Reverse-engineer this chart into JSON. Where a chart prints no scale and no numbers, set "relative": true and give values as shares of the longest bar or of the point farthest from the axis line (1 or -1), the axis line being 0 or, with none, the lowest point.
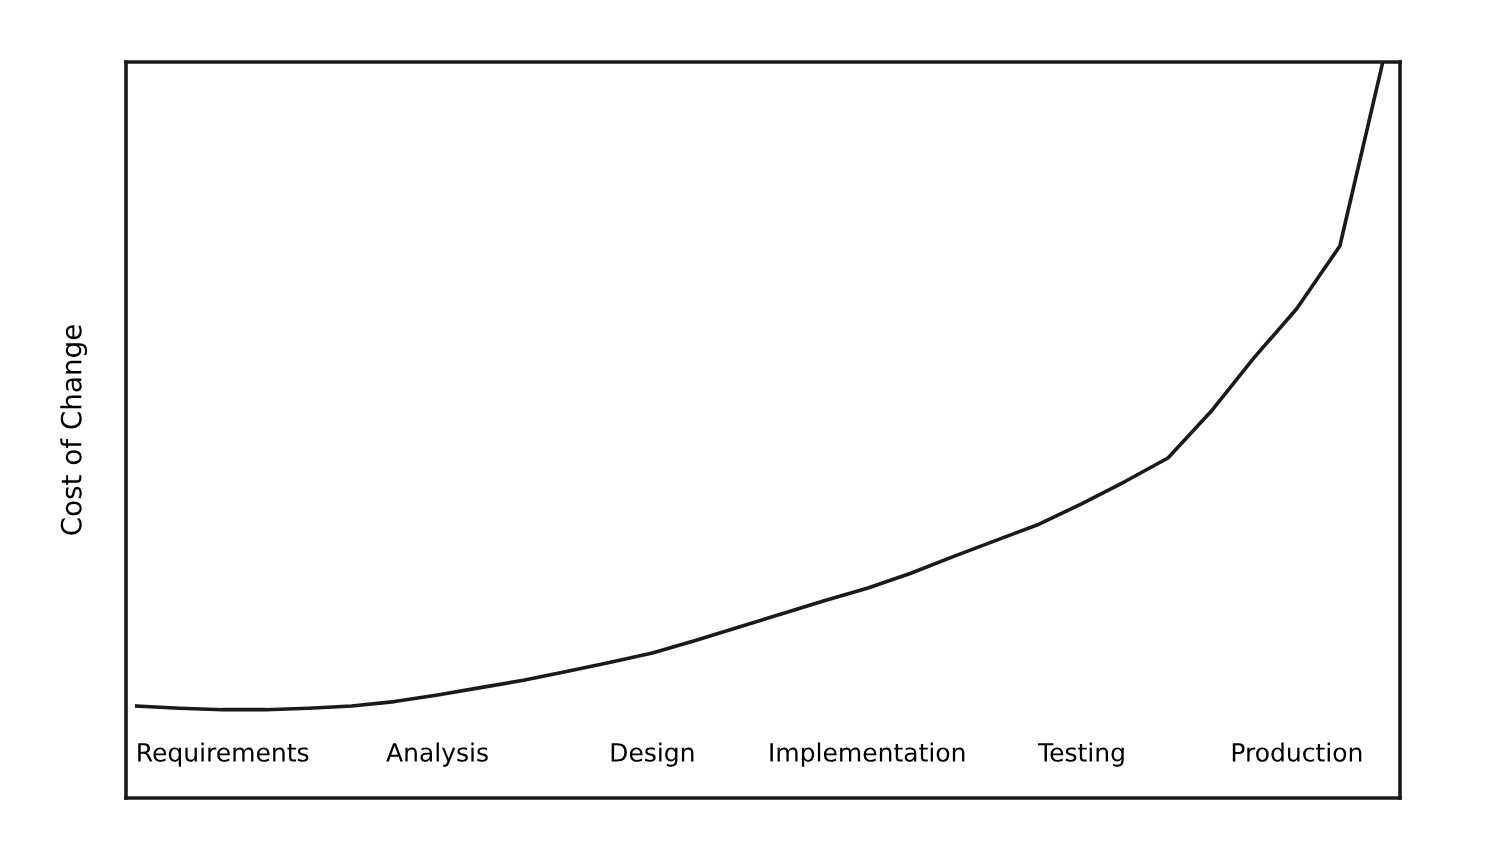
{
  "chart_data": {
    "type": "line",
    "ylabel": "Cost of Change",
    "relative": true,
    "categories": [
      null,
      null,
      "Requirements",
      null,
      null,
      null,
      null,
      "Analysis",
      null,
      null,
      null,
      null,
      "Design",
      null,
      null,
      null,
      null,
      "Implementation",
      null,
      null,
      null,
      null,
      "Testing",
      null,
      null,
      null,
      null,
      "Production",
      null,
      null
    ],
    "series": [
      {
        "color": "#1a1a1a",
        "values": [
          0.125,
          0.122,
          0.12,
          0.12,
          0.122,
          0.125,
          0.131,
          0.14,
          0.15,
          0.16,
          0.172,
          0.184,
          0.197,
          0.214,
          0.232,
          0.25,
          0.268,
          0.285,
          0.305,
          0.328,
          0.35,
          0.372,
          0.4,
          0.43,
          0.462,
          0.525,
          0.598,
          0.665,
          0.75,
          1.0
        ]
      }
    ],
    "grid": false,
    "legend": false,
    "marker": "none",
    "line_style": "solid"
  }
}
